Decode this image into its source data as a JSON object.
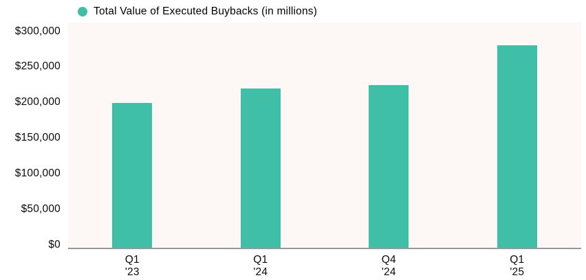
{
  "legend": {
    "label": "Total Value of Executed Buybacks (in millions)",
    "marker_color": "#3fbfa8"
  },
  "colors": {
    "bar": "#3fbfa8",
    "plot_background": "#fdf8f6",
    "axis_line": "#98989a",
    "text": "#0a0a0a"
  },
  "chart_data": {
    "type": "bar",
    "title": "Total Value of Executed Buybacks (in millions)",
    "categories": [
      {
        "line1": "Q1",
        "line2": "'23"
      },
      {
        "line1": "Q1",
        "line2": "'24"
      },
      {
        "line1": "Q4",
        "line2": "'24"
      },
      {
        "line1": "Q1",
        "line2": "'25"
      }
    ],
    "values": [
      200000,
      220000,
      225000,
      280000
    ],
    "series": [
      {
        "name": "Total Value of Executed Buybacks (in millions)",
        "values": [
          200000,
          220000,
          225000,
          280000
        ]
      }
    ],
    "xlabel": "",
    "ylabel": "",
    "ylim": [
      0,
      300000
    ],
    "yticks": [
      {
        "label": "$0",
        "value": 0
      },
      {
        "label": "$50,000",
        "value": 50000
      },
      {
        "label": "$100,000",
        "value": 100000
      },
      {
        "label": "$150,000",
        "value": 150000
      },
      {
        "label": "$200,000",
        "value": 200000
      },
      {
        "label": "$250,000",
        "value": 250000
      },
      {
        "label": "$300,000",
        "value": 300000
      }
    ],
    "grid": false,
    "legend_position": "top-left",
    "bar_color": "#3fbfa8"
  }
}
